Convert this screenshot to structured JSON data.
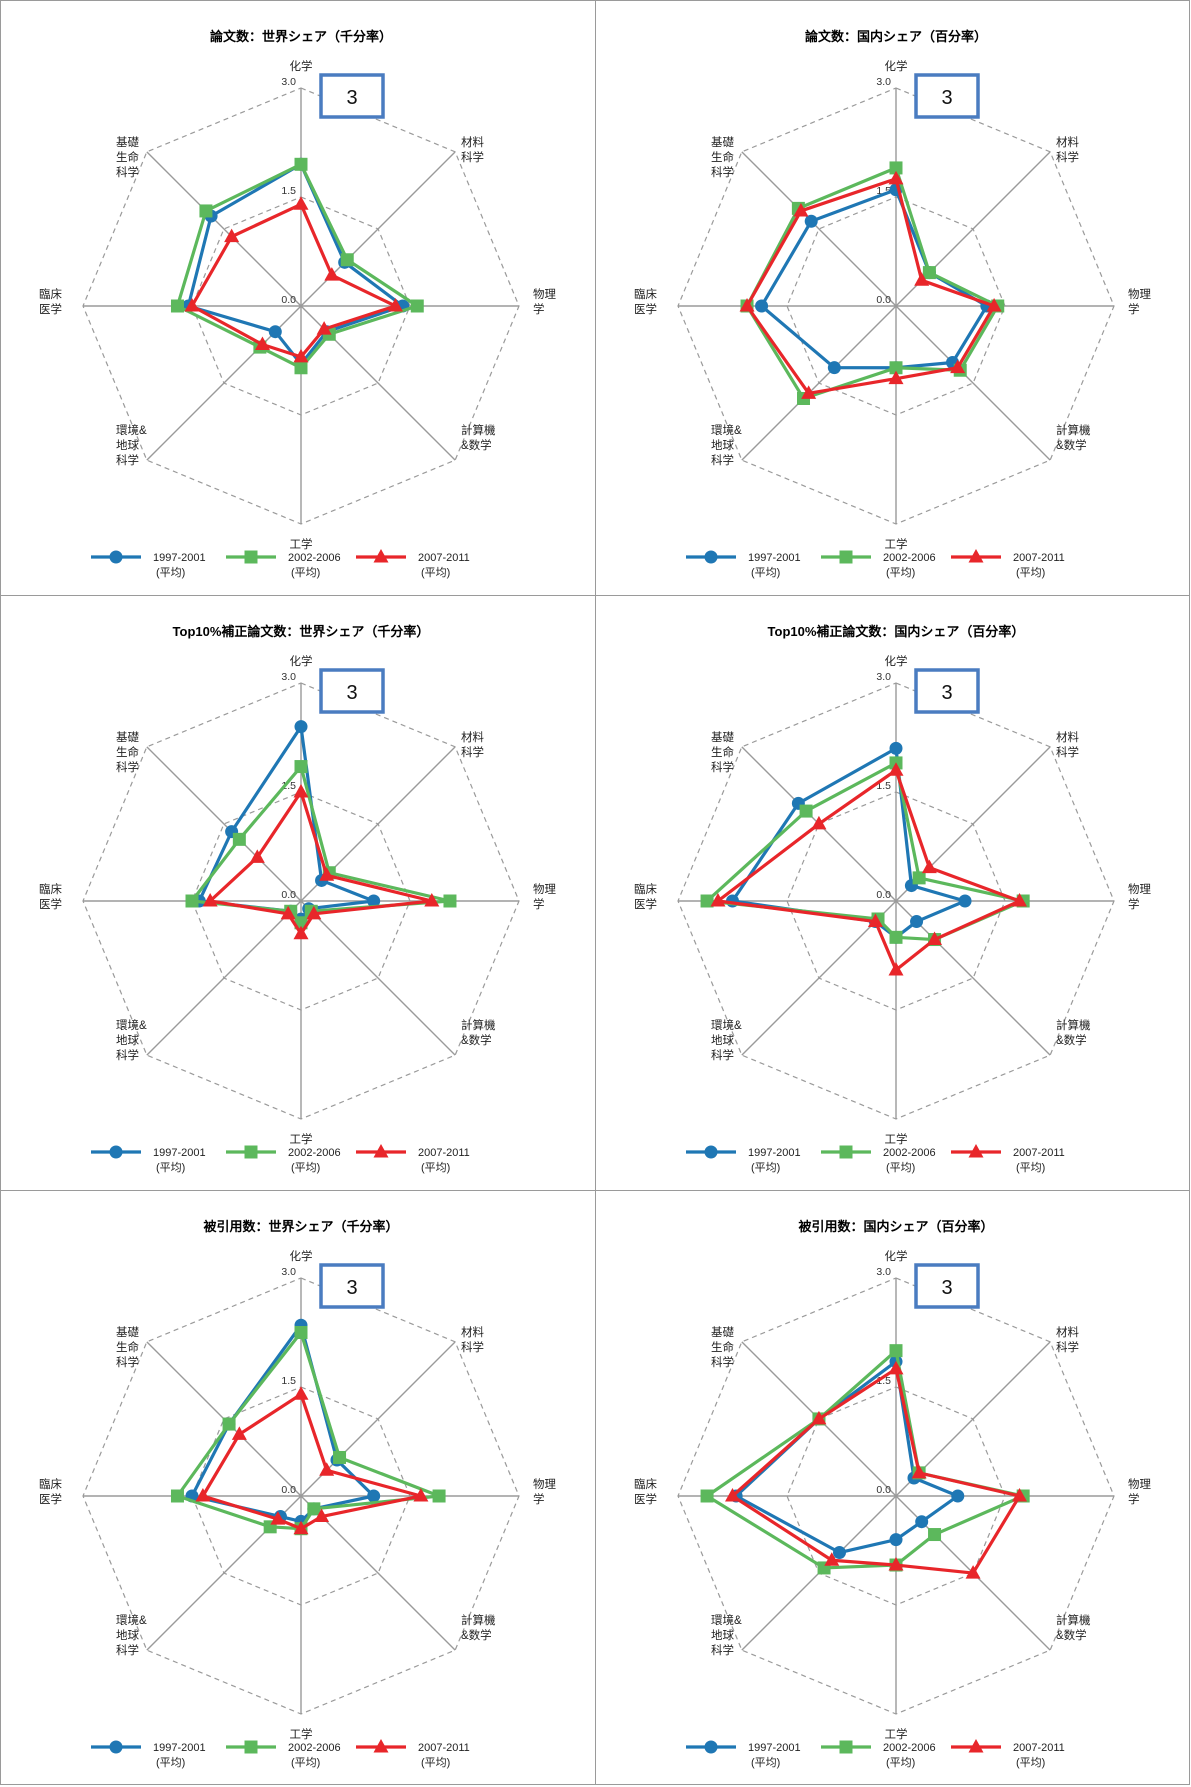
{
  "categories": [
    "化学",
    "材料\n科学",
    "物理\n学",
    "計算機\n&数学",
    "工学",
    "環境&\n地球\n科学",
    "臨床\n医学",
    "基礎\n生命\n科学"
  ],
  "ticks": [
    "0.0",
    "1.5",
    "3.0"
  ],
  "box_label": "3",
  "series_meta": [
    {
      "name": "1997-2001\n(平均)",
      "color": "#1f77b4",
      "marker": "circle"
    },
    {
      "name": "2002-2006\n(平均)",
      "color": "#5cb85c",
      "marker": "square"
    },
    {
      "name": "2007-2011\n(平均)",
      "color": "#e8262a",
      "marker": "triangle"
    }
  ],
  "chart_data": [
    {
      "type": "radar",
      "title": "論文数：世界シェア（千分率）",
      "rmax": 3.0,
      "series": [
        {
          "name": "1997-2001 (平均)",
          "values": [
            1.95,
            0.85,
            1.4,
            0.5,
            0.8,
            0.5,
            1.55,
            1.75
          ]
        },
        {
          "name": "2002-2006 (平均)",
          "values": [
            1.95,
            0.9,
            1.6,
            0.55,
            0.85,
            0.8,
            1.7,
            1.85
          ]
        },
        {
          "name": "2007-2011 (平均)",
          "values": [
            1.4,
            0.6,
            1.3,
            0.45,
            0.7,
            0.75,
            1.5,
            1.35
          ]
        }
      ]
    },
    {
      "type": "radar",
      "title": "論文数：国内シェア（百分率）",
      "rmax": 3.0,
      "series": [
        {
          "name": "1997-2001 (平均)",
          "values": [
            1.6,
            0.65,
            1.25,
            1.1,
            0.85,
            1.2,
            1.85,
            1.65
          ]
        },
        {
          "name": "2002-2006 (平均)",
          "values": [
            1.9,
            0.65,
            1.4,
            1.25,
            0.85,
            1.8,
            2.05,
            1.9
          ]
        },
        {
          "name": "2007-2011 (平均)",
          "values": [
            1.75,
            0.5,
            1.35,
            1.2,
            1.0,
            1.7,
            2.05,
            1.85
          ]
        }
      ]
    },
    {
      "type": "radar",
      "title": "Top10%補正論文数：世界シェア（千分率）",
      "rmax": 3.0,
      "series": [
        {
          "name": "1997-2001 (平均)",
          "values": [
            2.4,
            0.4,
            1.0,
            0.15,
            0.25,
            0.2,
            1.4,
            1.35
          ]
        },
        {
          "name": "2002-2006 (平均)",
          "values": [
            1.85,
            0.55,
            2.05,
            0.2,
            0.3,
            0.2,
            1.5,
            1.2
          ]
        },
        {
          "name": "2007-2011 (平均)",
          "values": [
            1.5,
            0.5,
            1.8,
            0.25,
            0.45,
            0.25,
            1.25,
            0.85
          ]
        }
      ]
    },
    {
      "type": "radar",
      "title": "Top10%補正論文数：国内シェア（百分率）",
      "rmax": 3.0,
      "series": [
        {
          "name": "1997-2001 (平均)",
          "values": [
            2.1,
            0.3,
            0.95,
            0.4,
            0.5,
            0.4,
            2.25,
            1.9
          ]
        },
        {
          "name": "2002-2006 (平均)",
          "values": [
            1.9,
            0.45,
            1.75,
            0.75,
            0.5,
            0.35,
            2.6,
            1.75
          ]
        },
        {
          "name": "2007-2011 (平均)",
          "values": [
            1.8,
            0.65,
            1.7,
            0.75,
            0.95,
            0.4,
            2.45,
            1.5
          ]
        }
      ]
    },
    {
      "type": "radar",
      "title": "被引用数：世界シェア（千分率）",
      "rmax": 3.0,
      "series": [
        {
          "name": "1997-2001 (平均)",
          "values": [
            2.35,
            0.7,
            1.0,
            0.25,
            0.35,
            0.4,
            1.5,
            1.4
          ]
        },
        {
          "name": "2002-2006 (平均)",
          "values": [
            2.25,
            0.75,
            1.9,
            0.25,
            0.45,
            0.6,
            1.7,
            1.4
          ]
        },
        {
          "name": "2007-2011 (平均)",
          "values": [
            1.4,
            0.5,
            1.65,
            0.4,
            0.45,
            0.45,
            1.35,
            1.2
          ]
        }
      ]
    },
    {
      "type": "radar",
      "title": "被引用数：国内シェア（百分率）",
      "rmax": 3.0,
      "series": [
        {
          "name": "1997-2001 (平均)",
          "values": [
            1.85,
            0.35,
            0.85,
            0.5,
            0.6,
            1.1,
            2.2,
            1.5
          ]
        },
        {
          "name": "2002-2006 (平均)",
          "values": [
            2.0,
            0.45,
            1.75,
            0.75,
            0.95,
            1.4,
            2.6,
            1.5
          ]
        },
        {
          "name": "2007-2011 (平均)",
          "values": [
            1.75,
            0.45,
            1.7,
            1.5,
            0.95,
            1.25,
            2.25,
            1.5
          ]
        }
      ]
    }
  ]
}
